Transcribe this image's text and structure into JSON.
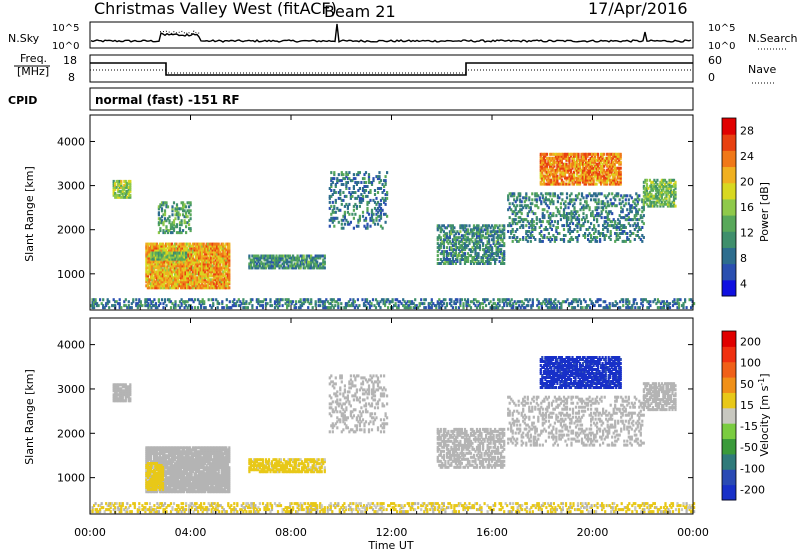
{
  "header": {
    "station": "Christmas Valley West (fitACF)",
    "beam": "Beam 21",
    "date": "17/Apr/2016"
  },
  "noise_panel": {
    "left_label": "N.Sky",
    "right_label": "N.Search",
    "left_ticks": [
      "10^5",
      "10^0"
    ],
    "right_ticks": [
      "10^5",
      "10^0"
    ]
  },
  "freq_panel": {
    "left_label_1": "Freq.",
    "left_label_2": "[MHz]",
    "right_label": "Nave",
    "left_ticks": [
      "18",
      "8"
    ],
    "right_ticks": [
      "60",
      "0"
    ]
  },
  "cpid": {
    "label": "CPID",
    "value": "normal (fast) -151 RF"
  },
  "colors": {
    "power_scale": [
      "#1010e0",
      "#2a4fb0",
      "#2d6d8e",
      "#3f8f6c",
      "#58a85a",
      "#8fc94a",
      "#d8d820",
      "#f0b020",
      "#f07818",
      "#e84010",
      "#e00000"
    ],
    "velocity_scale": [
      "#1830c8",
      "#2a4ab4",
      "#2f7a7a",
      "#3a9a3a",
      "#7acc40",
      "#c8c8c0",
      "#e8c818",
      "#f09018",
      "#f06018",
      "#f03010",
      "#e00000"
    ],
    "ground_scatter": "#b4b4b4"
  },
  "chart_data": [
    {
      "type": "heatmap",
      "title": "",
      "quantity": "Power",
      "colorbar_label": "Power [dB]",
      "colorbar_ticks": [
        "28",
        "24",
        "20",
        "16",
        "12",
        "8",
        "4"
      ],
      "colorbar_range": [
        0,
        32
      ],
      "xlabel": "",
      "ylabel": "Slant Range [km]",
      "x_ticks": [
        "00:00",
        "04:00",
        "08:00",
        "12:00",
        "16:00",
        "20:00",
        "00:00"
      ],
      "xlim_hours": [
        0,
        24
      ],
      "y_ticks": [
        "4000",
        "3000",
        "2000",
        "1000"
      ],
      "ylim_km": [
        180,
        4600
      ],
      "features": [
        {
          "t0": 2.2,
          "t1": 5.5,
          "r0": 650,
          "r1": 1650,
          "value": 22,
          "density": 0.92
        },
        {
          "t0": 2.4,
          "t1": 3.8,
          "r0": 1300,
          "r1": 1450,
          "value": 14,
          "density": 0.85
        },
        {
          "t0": 6.3,
          "t1": 9.3,
          "r0": 1100,
          "r1": 1400,
          "value": 10,
          "density": 0.75
        },
        {
          "t0": 0.9,
          "t1": 1.6,
          "r0": 2700,
          "r1": 3100,
          "value": 16,
          "density": 0.8
        },
        {
          "t0": 2.7,
          "t1": 4.0,
          "r0": 1900,
          "r1": 2600,
          "value": 12,
          "density": 0.35
        },
        {
          "t0": 9.5,
          "t1": 11.8,
          "r0": 2000,
          "r1": 3300,
          "value": 8,
          "density": 0.25
        },
        {
          "t0": 13.8,
          "t1": 16.5,
          "r0": 1200,
          "r1": 2100,
          "value": 10,
          "density": 0.55
        },
        {
          "t0": 17.9,
          "t1": 21.1,
          "r0": 3000,
          "r1": 3700,
          "value": 24,
          "density": 0.78
        },
        {
          "t0": 16.6,
          "t1": 22.0,
          "r0": 1700,
          "r1": 2800,
          "value": 9,
          "density": 0.3
        },
        {
          "t0": 22.0,
          "t1": 23.3,
          "r0": 2500,
          "r1": 3100,
          "value": 14,
          "density": 0.65
        },
        {
          "t0": 0.0,
          "t1": 24.0,
          "r0": 200,
          "r1": 420,
          "value": 8,
          "density": 0.4
        }
      ]
    },
    {
      "type": "heatmap",
      "title": "",
      "quantity": "Velocity",
      "colorbar_label": "Velocity [m s^-1]",
      "colorbar_ticks": [
        "200",
        "100",
        "50",
        "15",
        "-15",
        "-50",
        "-100",
        "-200"
      ],
      "colorbar_range": [
        -250,
        250
      ],
      "xlabel": "Time UT",
      "ylabel": "Slant Range [km]",
      "x_ticks": [
        "00:00",
        "04:00",
        "08:00",
        "12:00",
        "16:00",
        "20:00",
        "00:00"
      ],
      "xlim_hours": [
        0,
        24
      ],
      "y_ticks": [
        "4000",
        "3000",
        "2000",
        "1000"
      ],
      "ylim_km": [
        180,
        4600
      ],
      "features": [
        {
          "t0": 2.2,
          "t1": 5.5,
          "r0": 650,
          "r1": 1650,
          "value": 0,
          "density": 0.92
        },
        {
          "t0": 2.2,
          "t1": 2.9,
          "r0": 700,
          "r1": 1300,
          "value": 40,
          "density": 0.85
        },
        {
          "t0": 6.3,
          "t1": 9.3,
          "r0": 1100,
          "r1": 1400,
          "value": 40,
          "density": 0.75
        },
        {
          "t0": 0.9,
          "t1": 1.6,
          "r0": 2700,
          "r1": 3100,
          "value": 0,
          "density": 0.8
        },
        {
          "t0": 9.5,
          "t1": 11.8,
          "r0": 2000,
          "r1": 3300,
          "value": 0,
          "density": 0.25
        },
        {
          "t0": 13.8,
          "t1": 16.5,
          "r0": 1200,
          "r1": 2100,
          "value": 0,
          "density": 0.55
        },
        {
          "t0": 17.9,
          "t1": 21.1,
          "r0": 3000,
          "r1": 3700,
          "value": -220,
          "density": 0.78
        },
        {
          "t0": 16.6,
          "t1": 22.0,
          "r0": 1700,
          "r1": 2800,
          "value": 0,
          "density": 0.3
        },
        {
          "t0": 22.0,
          "t1": 23.3,
          "r0": 2500,
          "r1": 3100,
          "value": 0,
          "density": 0.65
        },
        {
          "t0": 0.0,
          "t1": 24.0,
          "r0": 200,
          "r1": 420,
          "value": 30,
          "density": 0.4
        }
      ]
    }
  ]
}
